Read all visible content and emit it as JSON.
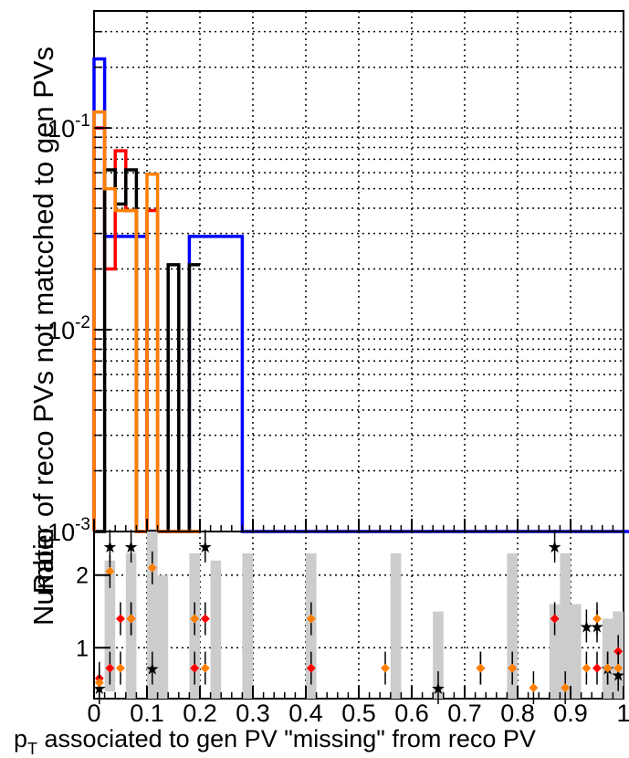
{
  "chart_data": [
    {
      "type": "line",
      "step": true,
      "ylog": true,
      "xlim": [
        0,
        1
      ],
      "ylim": [
        0.001,
        0.38
      ],
      "grid": true,
      "xlabel": "",
      "ylabel": "Number of reco PVs not matcched to gen PVs",
      "ytick_labels": [
        "10^-3",
        "10^-2",
        "10^-1"
      ],
      "bin_width": 0.02,
      "series": [
        {
          "color": "#0000ff",
          "values": [
            0.22,
            0.029,
            0.029,
            0.029,
            0.029,
            0.001,
            0.001,
            0.001,
            0.001,
            0.029,
            0.029,
            0.029,
            0.029,
            0.029,
            0.001,
            0.001,
            0.001,
            0.001,
            0.001,
            0.001,
            0.001,
            0.001,
            0.001,
            0.001,
            0.001,
            0.001,
            0.001,
            0.001,
            0.001,
            0.001,
            0.001,
            0.001,
            0.001,
            0.001,
            0.001,
            0.001,
            0.001,
            0.001,
            0.001,
            0.001,
            0.001,
            0.001,
            0.001,
            0.001,
            0.001,
            0.001,
            0.001,
            0.001,
            0.001,
            0.001,
            0.001,
            0.001,
            0.001,
            0.001,
            0.001,
            0.001,
            0.001,
            0.001,
            0.001,
            0.001,
            0.001,
            0.001,
            0.001,
            0.001,
            0.001,
            0.001,
            0.001,
            0.001,
            0.001,
            0.001,
            0.001,
            0.001,
            0.001,
            0.001,
            0.001,
            0.001,
            0.001,
            0.001,
            0.001,
            0.001,
            0.001,
            0.001,
            0.001,
            0.001,
            0.001,
            0.001,
            0.001,
            0.001,
            0.001,
            0.001,
            0.001,
            0.001,
            0.001,
            0.001,
            0.001,
            0.001,
            0.001,
            0.001,
            0.001,
            0.001
          ]
        },
        {
          "color": "#ff0000",
          "values": [
            0.1,
            0.02,
            0.077,
            0.039,
            0.001,
            0.039,
            0.001,
            0.001,
            0.001,
            0.001
          ]
        },
        {
          "color": "#000000",
          "values": [
            0.001,
            0.062,
            0.042,
            0.062,
            0.001,
            0.001,
            0.001,
            0.021,
            0.001,
            0.021
          ]
        },
        {
          "color": "#ff7f00",
          "values": [
            0.12,
            0.05,
            0.039,
            0.039,
            0.001,
            0.059,
            0.001,
            0.001,
            0.001,
            0.001
          ]
        }
      ]
    },
    {
      "type": "scatter",
      "xlim": [
        0,
        1
      ],
      "ylabel": "Ratio",
      "xlabel": "p_T associated to gen PV \"missing\" from reco PV",
      "x_tick_labels": [
        "0",
        "0.1",
        "0.2",
        "0.3",
        "0.4",
        "0.5",
        "0.6",
        "0.7",
        "0.8",
        "0.9",
        "1"
      ],
      "y_tick_labels": [
        "1",
        "2"
      ],
      "ylim": [
        0.3,
        2.6
      ],
      "series": [
        {
          "name": "",
          "color": "#000000",
          "marker": "star",
          "points": [
            [
              0.01,
              0.45
            ],
            [
              0.03,
              2.4
            ],
            [
              0.07,
              2.4
            ],
            [
              0.11,
              0.72
            ],
            [
              0.21,
              2.4
            ],
            [
              0.65,
              0.45
            ],
            [
              0.87,
              2.4
            ],
            [
              0.93,
              1.3
            ],
            [
              0.95,
              1.3
            ],
            [
              0.97,
              0.72
            ],
            [
              0.99,
              0.63
            ]
          ]
        },
        {
          "name": "",
          "color": "#ff0000",
          "marker": "circle",
          "points": [
            [
              0.01,
              0.58
            ],
            [
              0.03,
              0.72
            ],
            [
              0.05,
              1.4
            ],
            [
              0.07,
              1.4
            ],
            [
              0.19,
              0.72
            ],
            [
              0.21,
              1.4
            ],
            [
              0.41,
              0.72
            ],
            [
              0.73,
              0.72
            ],
            [
              0.79,
              0.72
            ],
            [
              0.87,
              1.4
            ],
            [
              0.95,
              0.72
            ],
            [
              0.99,
              0.95
            ]
          ]
        },
        {
          "name": "",
          "color": "#ff7f00",
          "marker": "circle",
          "points": [
            [
              0.01,
              0.52
            ],
            [
              0.03,
              2.05
            ],
            [
              0.05,
              0.72
            ],
            [
              0.07,
              1.4
            ],
            [
              0.11,
              2.1
            ],
            [
              0.19,
              1.4
            ],
            [
              0.21,
              0.72
            ],
            [
              0.41,
              1.4
            ],
            [
              0.55,
              0.72
            ],
            [
              0.73,
              0.72
            ],
            [
              0.79,
              0.72
            ],
            [
              0.83,
              0.45
            ],
            [
              0.89,
              0.45
            ],
            [
              0.93,
              0.72
            ],
            [
              0.95,
              1.4
            ],
            [
              0.97,
              0.72
            ],
            [
              0.99,
              0.72
            ]
          ]
        }
      ],
      "band_color": "#cccccc",
      "bands": [
        [
          0.02,
          0.4,
          2.2
        ],
        [
          0.06,
          0.3,
          2.3
        ],
        [
          0.1,
          0.3,
          2.6
        ],
        [
          0.12,
          0.3,
          2.0
        ],
        [
          0.18,
          0.3,
          2.3
        ],
        [
          0.22,
          0.3,
          2.2
        ],
        [
          0.28,
          0.3,
          2.3
        ],
        [
          0.4,
          0.3,
          2.3
        ],
        [
          0.56,
          0.3,
          2.3
        ],
        [
          0.64,
          0.3,
          1.5
        ],
        [
          0.78,
          0.3,
          2.3
        ],
        [
          0.86,
          0.3,
          1.6
        ],
        [
          0.88,
          0.3,
          2.3
        ],
        [
          0.9,
          0.3,
          1.6
        ],
        [
          0.96,
          0.3,
          1.4
        ],
        [
          0.98,
          0.3,
          1.5
        ]
      ]
    }
  ]
}
